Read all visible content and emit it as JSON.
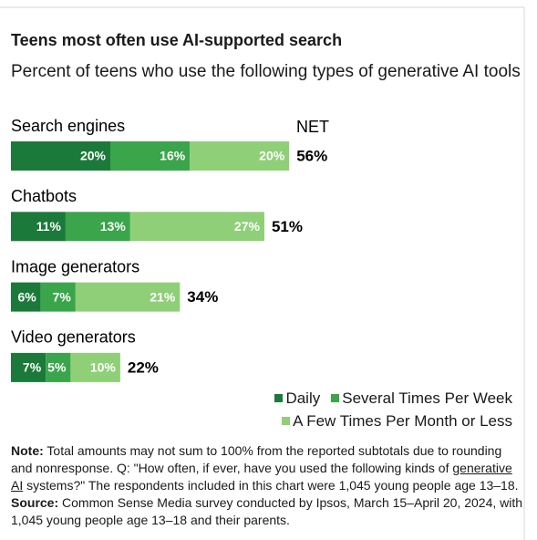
{
  "chart_data": {
    "type": "stacked-bar-horizontal",
    "title": "Teens most often use AI-supported search",
    "subtitle": "Percent of teens who use the following types of generative AI tools",
    "categories": [
      "Search engines",
      "Chatbots",
      "Image generators",
      "Video generators"
    ],
    "series": [
      {
        "name": "Daily",
        "color": "#1b7a3a",
        "values": [
          20,
          11,
          6,
          7
        ],
        "value_labels": [
          "20%",
          "11%",
          "6%",
          "7%"
        ]
      },
      {
        "name": "Several Times Per Week",
        "color": "#3aa54b",
        "values": [
          16,
          13,
          7,
          5
        ],
        "value_labels": [
          "16%",
          "13%",
          "7%",
          "5%"
        ]
      },
      {
        "name": "A Few Times Per Month or Less",
        "color": "#8fcf78",
        "values": [
          20,
          27,
          21,
          10
        ],
        "value_labels": [
          "20%",
          "27%",
          "21%",
          "10%"
        ]
      }
    ],
    "totals": {
      "name": "NET",
      "values": [
        56,
        51,
        34,
        22
      ],
      "value_labels": [
        "56%",
        "51%",
        "34%",
        "22%"
      ]
    },
    "note": [
      {
        "text": "Note:",
        "bold": true
      },
      {
        "text": " Total amounts may not sum to 100% from the reported subtotals due to rounding and nonresponse. Q: \"How often, if ever, have you used the following kinds of "
      },
      {
        "text": "generative AI",
        "underline": true
      },
      {
        "text": " systems?\" The respondents included in this chart were 1,045 young people age 13–18. "
      },
      {
        "text": "Source:",
        "bold": true
      },
      {
        "text": " Common Sense Media survey conducted by Ipsos, March 15–April 20, 2024, with 1,045 young people age 13–18 and their parents."
      }
    ]
  }
}
